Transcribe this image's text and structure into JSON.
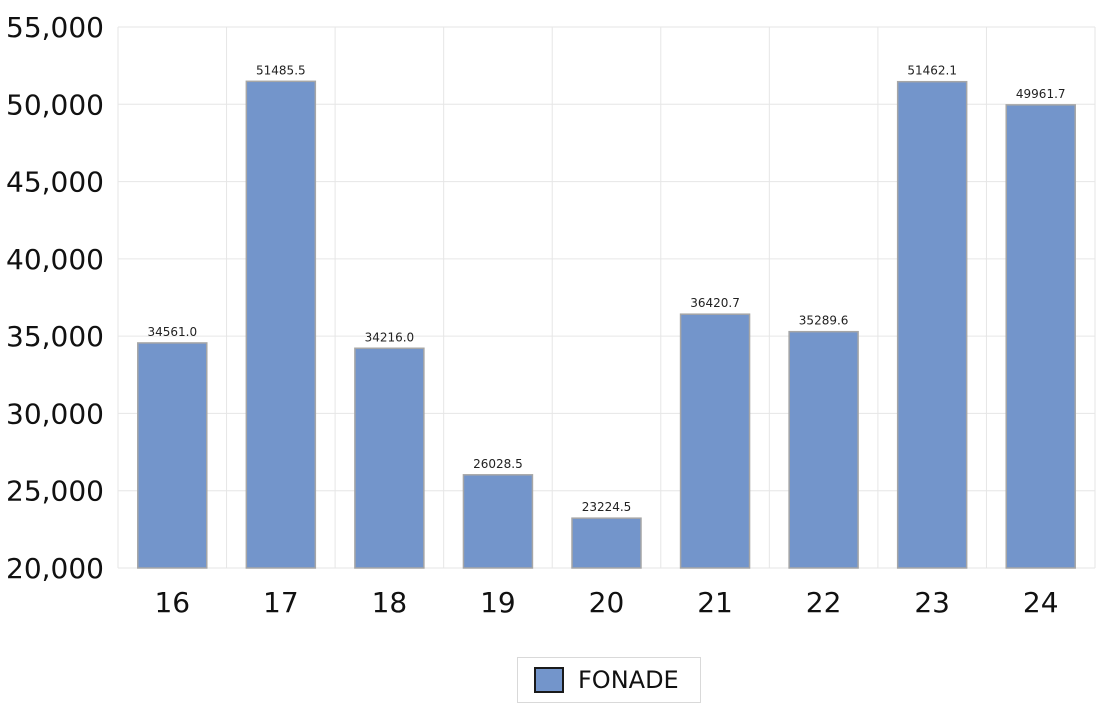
{
  "chart_data": {
    "type": "bar",
    "categories": [
      "16",
      "17",
      "18",
      "19",
      "20",
      "21",
      "22",
      "23",
      "24"
    ],
    "series": [
      {
        "name": "FONADE",
        "values": [
          34561.0,
          51485.5,
          34216.0,
          26028.5,
          23224.5,
          36420.7,
          35289.6,
          51462.1,
          49961.7
        ],
        "labels": [
          "34561.0",
          "51485.5",
          "34216.0",
          "26028.5",
          "23224.5",
          "36420.7",
          "35289.6",
          "51462.1",
          "49961.7"
        ],
        "color": "#7395cb"
      }
    ],
    "ylim": [
      20000,
      55000
    ],
    "yticks": [
      20000,
      25000,
      30000,
      35000,
      40000,
      45000,
      50000,
      55000
    ],
    "ytick_labels": [
      "20,000",
      "25,000",
      "30,000",
      "35,000",
      "40,000",
      "45,000",
      "50,000",
      "55,000"
    ],
    "grid": true,
    "legend_position": "bottom-center"
  },
  "colors": {
    "bar_fill": "#7395cb",
    "bar_stroke": "#a6a6a6",
    "grid": "#e6e6e6"
  }
}
